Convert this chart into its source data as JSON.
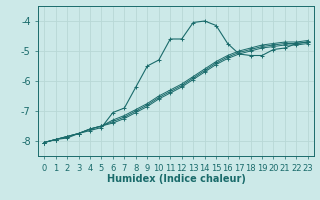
{
  "xlabel": "Humidex (Indice chaleur)",
  "xlim": [
    -0.5,
    23.5
  ],
  "ylim": [
    -8.5,
    -3.5
  ],
  "yticks": [
    -8,
    -7,
    -6,
    -5,
    -4
  ],
  "xticks": [
    0,
    1,
    2,
    3,
    4,
    5,
    6,
    7,
    8,
    9,
    10,
    11,
    12,
    13,
    14,
    15,
    16,
    17,
    18,
    19,
    20,
    21,
    22,
    23
  ],
  "bg_color": "#cce9e8",
  "grid_color": "#b8d8d6",
  "line_color": "#1a6b6b",
  "line_main": {
    "x": [
      0,
      1,
      2,
      3,
      4,
      5,
      6,
      7,
      8,
      9,
      10,
      11,
      12,
      13,
      14,
      15,
      16,
      17,
      18,
      19,
      20,
      21,
      22,
      23
    ],
    "y": [
      -8.05,
      -7.95,
      -7.9,
      -7.75,
      -7.65,
      -7.55,
      -7.05,
      -6.9,
      -6.2,
      -5.5,
      -5.3,
      -4.6,
      -4.6,
      -4.05,
      -4.0,
      -4.15,
      -4.75,
      -5.1,
      -5.15,
      -5.15,
      -4.95,
      -4.9,
      -4.75,
      -4.7
    ]
  },
  "line2": {
    "x": [
      0,
      1,
      2,
      3,
      4,
      5,
      6,
      7,
      8,
      9,
      10,
      11,
      12,
      13,
      14,
      15,
      16,
      17,
      18,
      19,
      20,
      21,
      22,
      23
    ],
    "y": [
      -8.05,
      -7.95,
      -7.85,
      -7.75,
      -7.6,
      -7.5,
      -7.3,
      -7.15,
      -6.95,
      -6.75,
      -6.5,
      -6.3,
      -6.1,
      -5.85,
      -5.6,
      -5.35,
      -5.15,
      -5.0,
      -4.9,
      -4.8,
      -4.75,
      -4.7,
      -4.7,
      -4.65
    ]
  },
  "line3": {
    "x": [
      0,
      1,
      2,
      3,
      4,
      5,
      6,
      7,
      8,
      9,
      10,
      11,
      12,
      13,
      14,
      15,
      16,
      17,
      18,
      19,
      20,
      21,
      22,
      23
    ],
    "y": [
      -8.05,
      -7.95,
      -7.85,
      -7.75,
      -7.6,
      -7.5,
      -7.35,
      -7.2,
      -7.0,
      -6.8,
      -6.55,
      -6.35,
      -6.15,
      -5.9,
      -5.65,
      -5.4,
      -5.2,
      -5.05,
      -4.95,
      -4.85,
      -4.8,
      -4.75,
      -4.75,
      -4.7
    ]
  },
  "line4": {
    "x": [
      0,
      1,
      2,
      3,
      4,
      5,
      6,
      7,
      8,
      9,
      10,
      11,
      12,
      13,
      14,
      15,
      16,
      17,
      18,
      19,
      20,
      21,
      22,
      23
    ],
    "y": [
      -8.05,
      -7.95,
      -7.85,
      -7.75,
      -7.6,
      -7.5,
      -7.4,
      -7.25,
      -7.05,
      -6.85,
      -6.6,
      -6.4,
      -6.2,
      -5.95,
      -5.7,
      -5.45,
      -5.25,
      -5.1,
      -5.0,
      -4.9,
      -4.85,
      -4.8,
      -4.8,
      -4.75
    ]
  },
  "marker_size": 2.5,
  "font_color": "#1a6b6b",
  "tick_fontsize": 6,
  "xlabel_fontsize": 7
}
